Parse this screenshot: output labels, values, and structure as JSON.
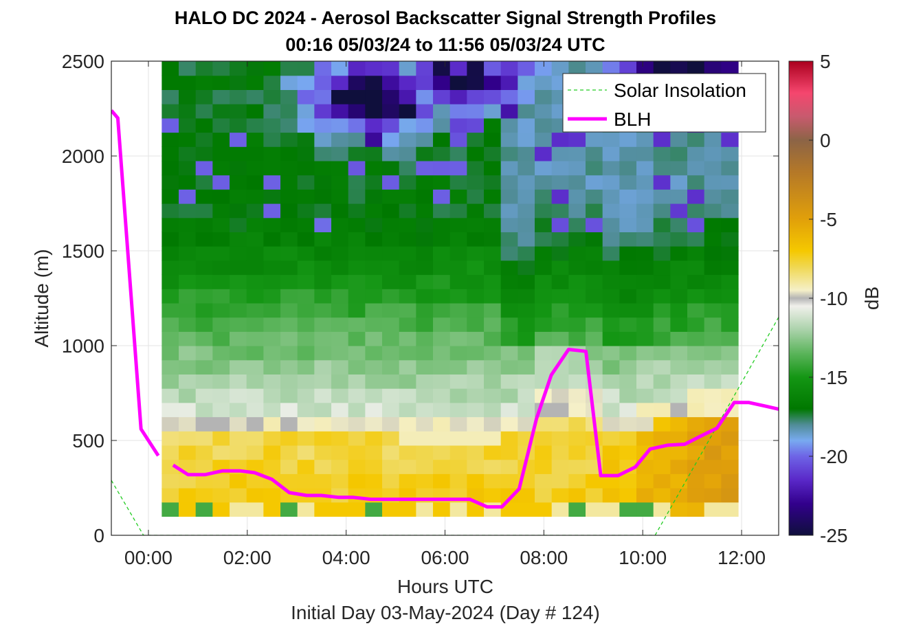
{
  "chart_data": {
    "type": "heatmap",
    "title": "HALO DC 2024 - Aerosol Backscatter Signal Strength Profiles",
    "subtitle": "00:16 05/03/24 to 11:56 05/03/24  UTC",
    "xlabel": "Hours UTC",
    "xlabel2": "Initial Day 03-May-2024 (Day # 124)",
    "ylabel": "Altitude (m)",
    "xlim": [
      -0.75,
      12.75
    ],
    "ylim": [
      0,
      2500
    ],
    "x_ticks": [
      0,
      2,
      4,
      6,
      8,
      10,
      12
    ],
    "x_tick_labels": [
      "00:00",
      "02:00",
      "04:00",
      "06:00",
      "08:00",
      "10:00",
      "12:00"
    ],
    "y_ticks": [
      0,
      500,
      1000,
      1500,
      2000,
      2500
    ],
    "y_tick_labels": [
      "0",
      "500",
      "1000",
      "1500",
      "2000",
      "2500"
    ],
    "grid": true,
    "legend_position": "top-right",
    "colorbar": {
      "label": "dB",
      "range": [
        -25,
        5
      ],
      "ticks": [
        5,
        0,
        -5,
        -10,
        -15,
        -20,
        -25
      ],
      "tick_labels": [
        "5",
        "0",
        "-5",
        "-10",
        "-15",
        "-20",
        "-25"
      ]
    },
    "heatmap": {
      "x_start": 0.27,
      "x_end": 11.93,
      "columns": 34,
      "y_bottom": 100,
      "y_top": 2500,
      "rows": 32,
      "description_units": "signal strength in dB"
    },
    "series": [
      {
        "name": "Solar Insolation",
        "style": "dashed",
        "color": "#22cc22",
        "points": [
          [
            -0.75,
            290
          ],
          [
            -0.1,
            0
          ],
          [
            10.25,
            0
          ],
          [
            12.75,
            1150
          ]
        ]
      },
      {
        "name": "BLH",
        "style": "solid",
        "color": "#ff00ff",
        "segments": [
          [
            [
              -0.75,
              2240
            ],
            [
              -0.62,
              2200
            ],
            [
              -0.15,
              560
            ],
            [
              0.2,
              420
            ]
          ],
          [
            [
              0.5,
              370
            ],
            [
              0.8,
              320
            ],
            [
              1.15,
              320
            ],
            [
              1.5,
              340
            ],
            [
              1.85,
              340
            ],
            [
              2.15,
              330
            ],
            [
              2.5,
              295
            ],
            [
              2.85,
              225
            ],
            [
              3.2,
              210
            ],
            [
              3.5,
              210
            ],
            [
              3.85,
              200
            ],
            [
              4.15,
              200
            ],
            [
              4.5,
              190
            ],
            [
              6.5,
              190
            ],
            [
              6.85,
              150
            ],
            [
              7.15,
              150
            ],
            [
              7.5,
              245
            ],
            [
              7.85,
              615
            ],
            [
              8.15,
              845
            ],
            [
              8.5,
              980
            ],
            [
              8.85,
              970
            ],
            [
              9.15,
              315
            ],
            [
              9.5,
              315
            ],
            [
              9.85,
              360
            ],
            [
              10.15,
              455
            ],
            [
              10.5,
              475
            ],
            [
              10.85,
              480
            ],
            [
              11.15,
              520
            ],
            [
              11.5,
              565
            ],
            [
              11.85,
              700
            ],
            [
              12.15,
              700
            ],
            [
              12.5,
              680
            ],
            [
              12.75,
              665
            ]
          ]
        ]
      }
    ]
  }
}
